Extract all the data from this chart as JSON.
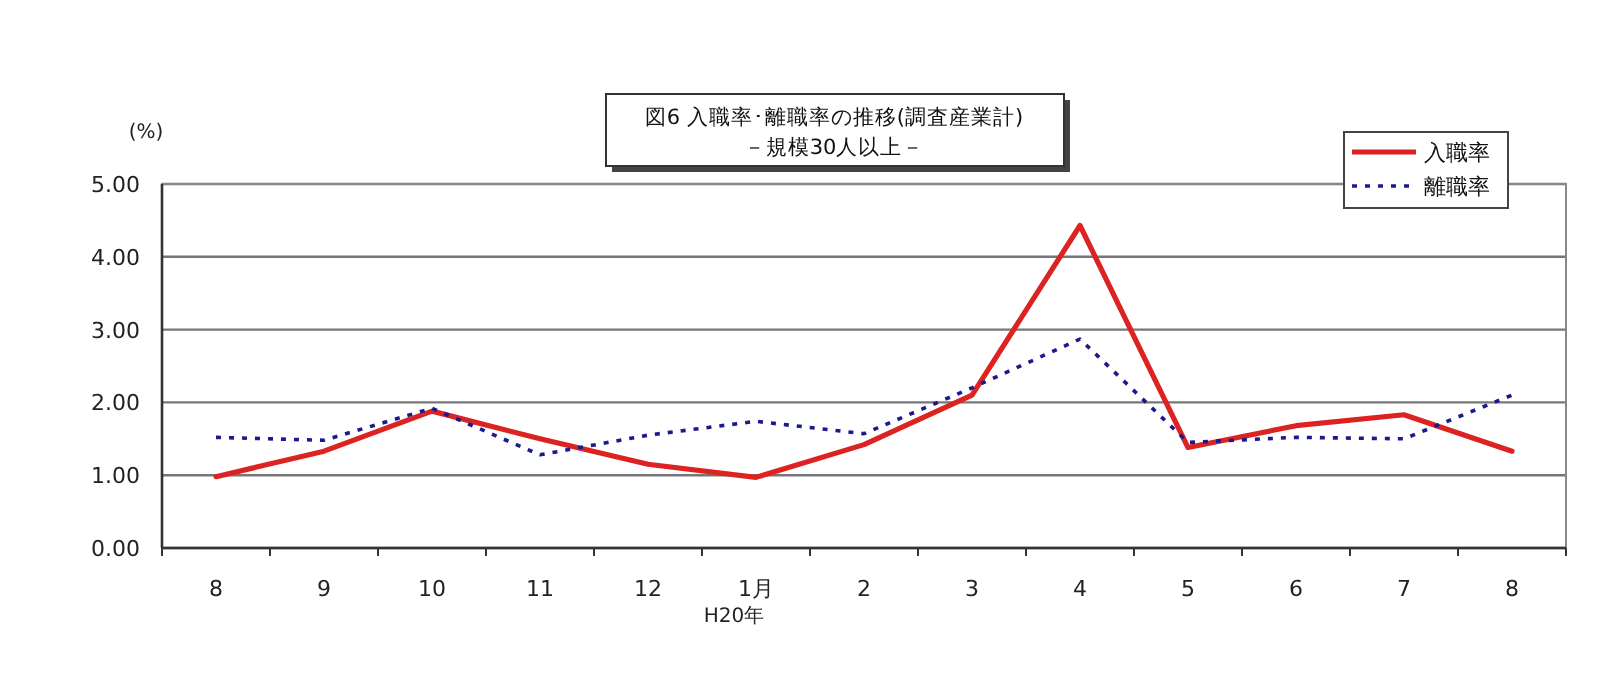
{
  "chart_data": {
    "type": "line",
    "title": "図6 入職率･離職率の推移(調査産業計)",
    "subtitle": "－規模30人以上－",
    "ylabel": "(%)",
    "categories": [
      "8",
      "9",
      "10",
      "11",
      "12",
      "1月",
      "2",
      "3",
      "4",
      "5",
      "6",
      "7",
      "8"
    ],
    "series": [
      {
        "name": "入職率",
        "color": "#dd2222",
        "line_style": "solid",
        "values": [
          0.98,
          1.33,
          1.88,
          1.5,
          1.15,
          0.97,
          1.42,
          2.1,
          4.43,
          1.38,
          1.68,
          1.83,
          1.33
        ]
      },
      {
        "name": "離職率",
        "color": "#1a1a8c",
        "line_style": "dotted",
        "values": [
          1.52,
          1.48,
          1.92,
          1.28,
          1.55,
          1.74,
          1.57,
          2.2,
          2.87,
          1.45,
          1.52,
          1.5,
          2.1
        ]
      }
    ],
    "ylim": [
      0,
      5
    ],
    "yticks": [
      {
        "value": 0,
        "label": "0.00"
      },
      {
        "value": 1,
        "label": "1.00"
      },
      {
        "value": 2,
        "label": "2.00"
      },
      {
        "value": 3,
        "label": "3.00"
      },
      {
        "value": 4,
        "label": "4.00"
      },
      {
        "value": 5,
        "label": "5.00"
      }
    ],
    "grid": "y",
    "legend": "top right",
    "marker": "none",
    "annotations": [
      "H20年"
    ]
  }
}
